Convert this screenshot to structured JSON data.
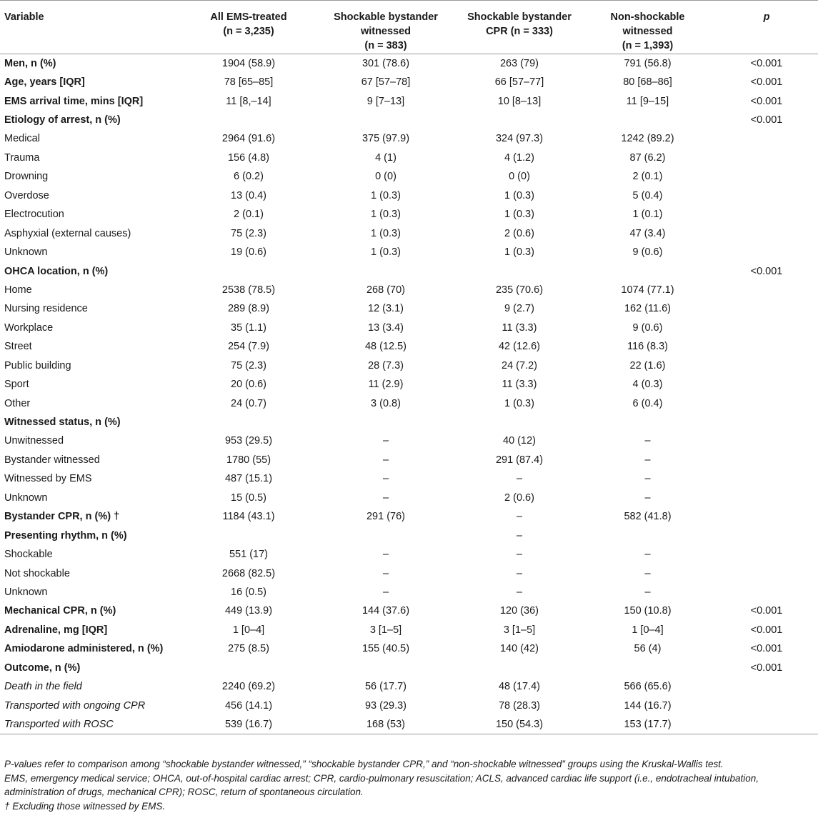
{
  "table": {
    "headers": [
      {
        "line1": "Variable",
        "line2": "",
        "line3": ""
      },
      {
        "line1": "All EMS-treated",
        "line2": "(n = 3,235)",
        "line3": ""
      },
      {
        "line1": "Shockable bystander",
        "line2": "witnessed",
        "line3": "(n = 383)"
      },
      {
        "line1": "Shockable bystander",
        "line2": "CPR (n = 333)",
        "line3": ""
      },
      {
        "line1": "Non-shockable",
        "line2": "witnessed",
        "line3": "(n = 1,393)"
      },
      {
        "line1": "p",
        "line2": "",
        "line3": ""
      }
    ],
    "rows": [
      {
        "label": "Men, n (%)",
        "style": "bold",
        "values": [
          "1904 (58.9)",
          "301 (78.6)",
          "263 (79)",
          "791 (56.8)",
          "<0.001"
        ]
      },
      {
        "label": "Age, years [IQR]",
        "style": "bold",
        "values": [
          "78 [65–85]",
          "67 [57–78]",
          "66 [57–77]",
          "80 [68–86]",
          "<0.001"
        ]
      },
      {
        "label": "EMS arrival time, mins [IQR]",
        "style": "bold",
        "values": [
          "11 [8,–14]",
          "9 [7–13]",
          "10 [8–13]",
          "11 [9–15]",
          "<0.001"
        ]
      },
      {
        "label": "Etiology of arrest, n (%)",
        "style": "bold",
        "values": [
          "",
          "",
          "",
          "",
          "<0.001"
        ]
      },
      {
        "label": "Medical",
        "style": "normal",
        "values": [
          "2964 (91.6)",
          "375 (97.9)",
          "324 (97.3)",
          "1242 (89.2)",
          ""
        ]
      },
      {
        "label": "Trauma",
        "style": "normal",
        "values": [
          "156 (4.8)",
          "4 (1)",
          "4 (1.2)",
          "87 (6.2)",
          ""
        ]
      },
      {
        "label": "Drowning",
        "style": "normal",
        "values": [
          "6 (0.2)",
          "0 (0)",
          "0 (0)",
          "2 (0.1)",
          ""
        ]
      },
      {
        "label": "Overdose",
        "style": "normal",
        "values": [
          "13 (0.4)",
          "1 (0.3)",
          "1 (0.3)",
          "5 (0.4)",
          ""
        ]
      },
      {
        "label": "Electrocution",
        "style": "normal",
        "values": [
          "2 (0.1)",
          "1 (0.3)",
          "1 (0.3)",
          "1 (0.1)",
          ""
        ]
      },
      {
        "label": "Asphyxial (external causes)",
        "style": "normal",
        "values": [
          "75 (2.3)",
          "1 (0.3)",
          "2 (0.6)",
          "47 (3.4)",
          ""
        ]
      },
      {
        "label": "Unknown",
        "style": "normal",
        "values": [
          "19 (0.6)",
          "1 (0.3)",
          "1 (0.3)",
          "9 (0.6)",
          ""
        ]
      },
      {
        "label": "OHCA location, n (%)",
        "style": "bold",
        "values": [
          "",
          "",
          "",
          "",
          "<0.001"
        ]
      },
      {
        "label": "Home",
        "style": "normal",
        "values": [
          "2538 (78.5)",
          "268 (70)",
          "235 (70.6)",
          "1074 (77.1)",
          ""
        ]
      },
      {
        "label": "Nursing residence",
        "style": "normal",
        "values": [
          "289 (8.9)",
          "12 (3.1)",
          "9 (2.7)",
          "162 (11.6)",
          ""
        ]
      },
      {
        "label": "Workplace",
        "style": "normal",
        "values": [
          "35 (1.1)",
          "13 (3.4)",
          "11 (3.3)",
          "9 (0.6)",
          ""
        ]
      },
      {
        "label": "Street",
        "style": "normal",
        "values": [
          "254 (7.9)",
          "48 (12.5)",
          "42 (12.6)",
          "116 (8.3)",
          ""
        ]
      },
      {
        "label": "Public building",
        "style": "normal",
        "values": [
          "75 (2.3)",
          "28 (7.3)",
          "24 (7.2)",
          "22 (1.6)",
          ""
        ]
      },
      {
        "label": "Sport",
        "style": "normal",
        "values": [
          "20 (0.6)",
          "11 (2.9)",
          "11 (3.3)",
          "4 (0.3)",
          ""
        ]
      },
      {
        "label": "Other",
        "style": "normal",
        "values": [
          "24 (0.7)",
          "3 (0.8)",
          "1 (0.3)",
          "6 (0.4)",
          ""
        ]
      },
      {
        "label": "Witnessed status, n (%)",
        "style": "bold",
        "values": [
          "",
          "",
          "",
          "",
          ""
        ]
      },
      {
        "label": "Unwitnessed",
        "style": "normal",
        "values": [
          "953 (29.5)",
          "–",
          "40 (12)",
          "–",
          ""
        ]
      },
      {
        "label": "Bystander witnessed",
        "style": "normal",
        "values": [
          "1780 (55)",
          "–",
          "291 (87.4)",
          "–",
          ""
        ]
      },
      {
        "label": "Witnessed by EMS",
        "style": "normal",
        "values": [
          "487 (15.1)",
          "–",
          "–",
          "–",
          ""
        ]
      },
      {
        "label": "Unknown",
        "style": "normal",
        "values": [
          "15 (0.5)",
          "–",
          "2 (0.6)",
          "–",
          ""
        ]
      },
      {
        "label": "Bystander CPR, n (%) †",
        "style": "bold",
        "values": [
          "1184 (43.1)",
          "291 (76)",
          "–",
          "582 (41.8)",
          ""
        ]
      },
      {
        "label": "Presenting rhythm, n (%)",
        "style": "bold",
        "values": [
          "",
          "",
          "–",
          "",
          ""
        ]
      },
      {
        "label": "Shockable",
        "style": "normal",
        "values": [
          "551 (17)",
          "–",
          "–",
          "–",
          ""
        ]
      },
      {
        "label": "Not shockable",
        "style": "normal",
        "values": [
          "2668 (82.5)",
          "–",
          "–",
          "–",
          ""
        ]
      },
      {
        "label": "Unknown",
        "style": "normal",
        "values": [
          "16 (0.5)",
          "–",
          "–",
          "–",
          ""
        ]
      },
      {
        "label": "Mechanical CPR, n (%)",
        "style": "bold",
        "values": [
          "449 (13.9)",
          "144 (37.6)",
          "120 (36)",
          "150 (10.8)",
          "<0.001"
        ]
      },
      {
        "label": "Adrenaline, mg [IQR]",
        "style": "bold",
        "values": [
          "1 [0–4]",
          "3 [1–5]",
          "3 [1–5]",
          "1 [0–4]",
          "<0.001"
        ]
      },
      {
        "label": "Amiodarone administered, n (%)",
        "style": "bold",
        "values": [
          "275 (8.5)",
          "155 (40.5)",
          "140 (42)",
          "56 (4)",
          "<0.001"
        ]
      },
      {
        "label": "Outcome, n (%)",
        "style": "bold",
        "values": [
          "",
          "",
          "",
          "",
          "<0.001"
        ]
      },
      {
        "label": "Death in the field",
        "style": "italic",
        "values": [
          "2240 (69.2)",
          "56 (17.7)",
          "48 (17.4)",
          "566 (65.6)",
          ""
        ]
      },
      {
        "label": "Transported with ongoing CPR",
        "style": "italic",
        "values": [
          "456 (14.1)",
          "93 (29.3)",
          "78 (28.3)",
          "144 (16.7)",
          ""
        ]
      },
      {
        "label": "Transported with ROSC",
        "style": "italic",
        "values": [
          "539 (16.7)",
          "168 (53)",
          "150 (54.3)",
          "153 (17.7)",
          ""
        ]
      }
    ]
  },
  "notes": [
    "P-values refer to comparison among “shockable bystander witnessed,” “shockable bystander CPR,” and “non-shockable witnessed” groups using the Kruskal-Wallis test.",
    "EMS, emergency medical service; OHCA, out-of-hospital cardiac arrest; CPR, cardio-pulmonary resuscitation; ACLS, advanced cardiac life support (i.e., endotracheal intubation,",
    "administration of drugs, mechanical CPR); ROSC, return of spontaneous circulation.",
    "† Excluding those witnessed by EMS."
  ]
}
